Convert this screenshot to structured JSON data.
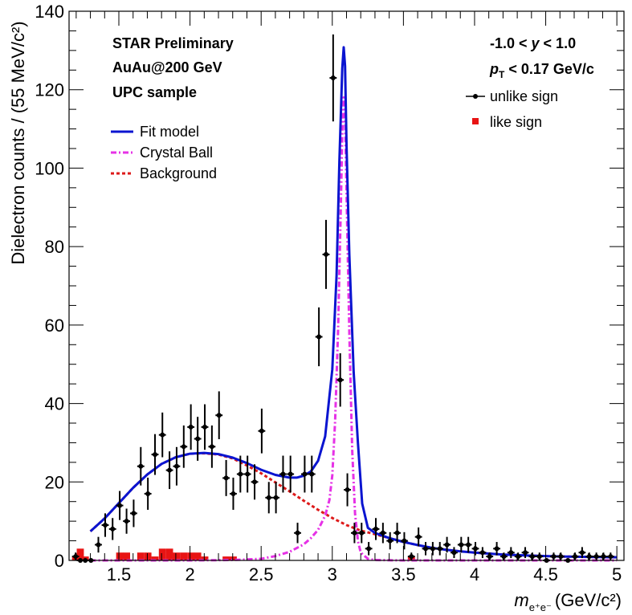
{
  "chart_data": {
    "type": "scatter",
    "xlabel_main": "m",
    "xlabel_sub": "e⁺e⁻",
    "xlabel_units": "(GeV/c²)",
    "ylabel": "Dielectron counts / (55 MeV/c²)",
    "xlim": [
      1.15,
      5.05
    ],
    "ylim": [
      0,
      140
    ],
    "x_ticks": [
      1.5,
      2,
      2.5,
      3,
      3.5,
      4,
      4.5,
      5
    ],
    "x_tick_labels": [
      "1.5",
      "2",
      "2.5",
      "3",
      "3.5",
      "4",
      "4.5",
      "5"
    ],
    "y_ticks": [
      0,
      20,
      40,
      60,
      80,
      100,
      120,
      140
    ],
    "y_tick_labels": [
      "0",
      "20",
      "40",
      "60",
      "80",
      "100",
      "120",
      "140"
    ],
    "grid": false,
    "annotations_left": [
      "STAR Preliminary",
      "AuAu@200 GeV",
      "UPC sample"
    ],
    "annotations_right": {
      "rapidity": {
        "pre": "-1.0 < ",
        "var": "y",
        "post": " < 1.0"
      },
      "pt": {
        "var": "p",
        "sub": "T",
        "post": " < 0.17 GeV/c"
      }
    },
    "legend": {
      "unlike": "unlike sign",
      "like": "like sign",
      "fit": "Fit model",
      "cb": "Crystal Ball",
      "bkg": "Background"
    },
    "colors": {
      "fit": "#0a14d0",
      "cb": "#e632e6",
      "bkg": "#dd1a1a",
      "unlike": "#000000",
      "like": "#e81414"
    },
    "series": [
      {
        "name": "unlike sign",
        "x": [
          1.196,
          1.229,
          1.264,
          1.304,
          1.356,
          1.404,
          1.456,
          1.506,
          1.554,
          1.604,
          1.654,
          1.704,
          1.754,
          1.806,
          1.856,
          1.906,
          1.956,
          2.006,
          2.054,
          2.104,
          2.154,
          2.204,
          2.254,
          2.304,
          2.354,
          2.404,
          2.454,
          2.504,
          2.554,
          2.604,
          2.654,
          2.706,
          2.756,
          2.806,
          2.856,
          2.906,
          2.956,
          3.006,
          3.056,
          3.106,
          3.156,
          3.206,
          3.256,
          3.306,
          3.356,
          3.406,
          3.456,
          3.506,
          3.556,
          3.606,
          3.656,
          3.706,
          3.756,
          3.806,
          3.856,
          3.906,
          3.956,
          4.006,
          4.056,
          4.106,
          4.156,
          4.206,
          4.256,
          4.306,
          4.356,
          4.406,
          4.456,
          4.506,
          4.556,
          4.606,
          4.656,
          4.706,
          4.756,
          4.806,
          4.856,
          4.906,
          4.956
        ],
        "y": [
          1,
          0,
          0,
          0,
          4,
          9,
          8,
          14,
          10,
          12,
          24,
          17,
          27,
          32,
          23,
          24,
          29,
          34,
          31,
          34,
          29,
          37,
          21,
          17,
          22,
          22,
          20,
          33,
          16,
          16,
          22,
          22,
          7,
          22,
          22,
          57,
          78,
          123,
          46,
          18,
          7,
          7,
          3,
          8,
          7,
          5,
          7,
          5,
          1,
          6,
          3,
          3,
          3,
          4,
          2,
          4,
          4,
          3,
          2,
          1,
          3,
          1,
          2,
          1,
          2,
          1,
          1,
          0,
          1,
          1,
          0,
          1,
          2,
          1,
          1,
          1,
          1
        ],
        "err": [
          1,
          0,
          0,
          0,
          2,
          3,
          2.8,
          3.7,
          3.2,
          3.5,
          4.9,
          4.1,
          5.2,
          5.7,
          4.8,
          4.9,
          5.4,
          5.8,
          5.6,
          5.8,
          5.4,
          6.1,
          4.6,
          4.1,
          4.7,
          4.7,
          4.5,
          5.7,
          4,
          4,
          4.7,
          4.7,
          2.6,
          4.7,
          4.7,
          7.5,
          8.8,
          11.1,
          6.8,
          4.2,
          2.6,
          2.6,
          1.7,
          2.8,
          2.6,
          2.2,
          2.6,
          2.2,
          1,
          2.4,
          1.7,
          1.7,
          1.7,
          2,
          1.4,
          2,
          2,
          1.7,
          1.4,
          1,
          1.7,
          1,
          1.4,
          1,
          1.4,
          1,
          1,
          0,
          1,
          1,
          0,
          1,
          1.4,
          1,
          1,
          1,
          1
        ]
      },
      {
        "name": "like sign",
        "x": [
          1.196,
          1.229,
          1.264,
          1.304,
          1.356,
          1.404,
          1.456,
          1.506,
          1.554,
          1.604,
          1.654,
          1.704,
          1.754,
          1.806,
          1.856,
          1.906,
          1.956,
          2.006,
          2.054,
          2.104,
          2.154,
          2.204,
          2.254,
          2.304,
          2.354,
          2.404,
          2.454,
          2.504,
          2.554,
          2.604,
          2.654,
          2.706,
          2.756,
          2.806,
          2.856,
          2.906,
          2.956,
          3.006,
          3.056,
          3.106,
          3.156,
          3.206,
          3.256,
          3.306,
          3.356,
          3.406,
          3.456,
          3.506,
          3.556,
          3.606,
          3.656,
          3.706,
          3.756,
          3.806,
          3.856,
          3.906,
          3.956,
          4.006,
          4.056,
          4.106,
          4.156,
          4.206,
          4.256,
          4.306,
          4.356,
          4.406,
          4.456,
          4.506,
          4.556,
          4.606,
          4.656,
          4.706,
          4.756,
          4.806,
          4.856,
          4.906,
          4.956
        ],
        "y": [
          1,
          3,
          1,
          0,
          0,
          0,
          0,
          2,
          2,
          0,
          2,
          2,
          1,
          3,
          3,
          2,
          2,
          2,
          2,
          1,
          0,
          0,
          1,
          1,
          0,
          0,
          0,
          0,
          0,
          0,
          0,
          0,
          0,
          0,
          0,
          0,
          0,
          0,
          0,
          0,
          0,
          0,
          0,
          0,
          0,
          0,
          0,
          0,
          1,
          0,
          0,
          0,
          0,
          0,
          0,
          0,
          0,
          0,
          0,
          0,
          0,
          0,
          0,
          0,
          0,
          0,
          0,
          0,
          0,
          0,
          0,
          0,
          0,
          0,
          0,
          0,
          0
        ]
      },
      {
        "name": "Fit model",
        "x": [
          1.3,
          1.4,
          1.5,
          1.6,
          1.7,
          1.8,
          1.9,
          2.0,
          2.1,
          2.2,
          2.3,
          2.4,
          2.5,
          2.6,
          2.7,
          2.75,
          2.8,
          2.85,
          2.9,
          2.95,
          3.0,
          3.03,
          3.05,
          3.07,
          3.08,
          3.09,
          3.1,
          3.12,
          3.15,
          3.18,
          3.21,
          3.25,
          3.3,
          3.4,
          3.5,
          3.6,
          3.7,
          3.8,
          3.9,
          4.0,
          4.2,
          4.4,
          4.6,
          4.8,
          5.0
        ],
        "y": [
          7.4,
          10.7,
          14.6,
          18.5,
          21.9,
          24.6,
          26.3,
          27.2,
          27.4,
          27.1,
          26.2,
          24.8,
          23.1,
          21.8,
          21.1,
          21.1,
          21.6,
          22.7,
          25.4,
          31.6,
          48.7,
          72.6,
          101.6,
          125.4,
          130.8,
          126,
          106,
          78,
          48,
          30,
          14.5,
          8.3,
          7,
          5.7,
          4.7,
          3.9,
          3.2,
          2.7,
          2.3,
          2,
          1.5,
          1.2,
          1,
          0.9,
          0.8
        ]
      },
      {
        "name": "Crystal Ball",
        "x": [
          1.3,
          2.0,
          2.3,
          2.5,
          2.6,
          2.7,
          2.8,
          2.85,
          2.9,
          2.95,
          2.98,
          3.0,
          3.02,
          3.04,
          3.06,
          3.07,
          3.08,
          3.09,
          3.1,
          3.12,
          3.14,
          3.16,
          3.18,
          3.2,
          3.25,
          3.3,
          3.5,
          4.0,
          5.0
        ],
        "y": [
          0,
          0,
          0.1,
          0.4,
          1.1,
          2.2,
          4.1,
          5.7,
          7.8,
          11.4,
          15.4,
          21.7,
          35.5,
          58,
          90,
          109,
          118,
          113,
          94,
          58,
          28,
          12,
          5,
          2,
          0.4,
          0.1,
          0,
          0,
          0
        ]
      },
      {
        "name": "Background",
        "x": [
          1.3,
          1.4,
          1.5,
          1.6,
          1.7,
          1.8,
          1.9,
          2.0,
          2.1,
          2.2,
          2.3,
          2.4,
          2.5,
          2.6,
          2.7,
          2.8,
          2.9,
          3.0,
          3.1,
          3.2,
          3.3,
          3.4,
          3.5,
          3.6,
          3.7,
          3.8,
          3.9,
          4.0,
          4.2,
          4.4,
          4.6,
          4.8,
          5.0
        ],
        "y": [
          7.4,
          10.7,
          14.6,
          18.5,
          21.9,
          24.6,
          26.3,
          27.2,
          27.3,
          27,
          26,
          24.2,
          22.2,
          19.9,
          17.6,
          15.2,
          12.9,
          10.8,
          9,
          7.6,
          6.7,
          5.7,
          4.7,
          3.9,
          3.2,
          2.7,
          2.3,
          2,
          1.5,
          1.2,
          1,
          0.9,
          0.8
        ]
      }
    ]
  }
}
